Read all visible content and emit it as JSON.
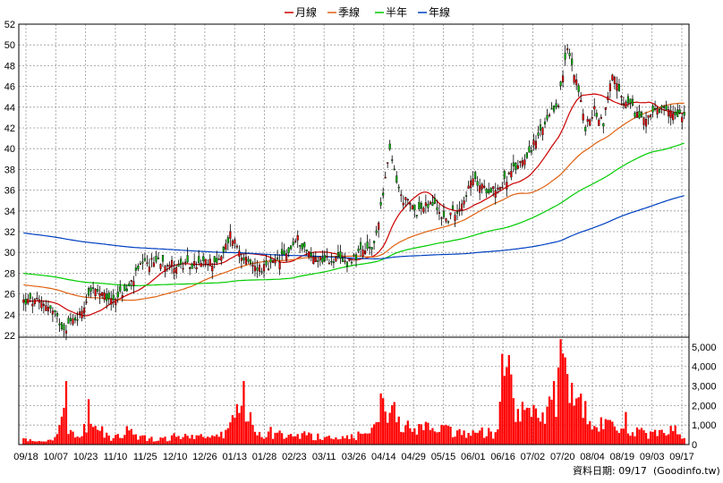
{
  "chart_data": {
    "type": "candlestick",
    "legend": [
      {
        "name": "月線",
        "color": "#cc0000"
      },
      {
        "name": "季線",
        "color": "#e06010"
      },
      {
        "name": "半年",
        "color": "#00cc00"
      },
      {
        "name": "年線",
        "color": "#0040c0"
      }
    ],
    "price_axis": {
      "ylim": [
        22,
        52
      ],
      "ticks": [
        22,
        24,
        26,
        28,
        30,
        32,
        34,
        36,
        38,
        40,
        42,
        44,
        46,
        48,
        50,
        52
      ]
    },
    "volume_axis": {
      "ylim": [
        0,
        5500
      ],
      "ticks": [
        0,
        1000,
        2000,
        3000,
        4000,
        5000
      ],
      "tick_labels": [
        "0",
        "1,000",
        "2,000",
        "3,000",
        "4,000",
        "5,000"
      ]
    },
    "x_labels": [
      "09/18",
      "10/07",
      "10/23",
      "11/10",
      "11/25",
      "12/10",
      "12/26",
      "01/13",
      "01/28",
      "02/23",
      "03/11",
      "03/26",
      "04/14",
      "04/29",
      "05/15",
      "06/01",
      "06/16",
      "07/02",
      "07/20",
      "08/04",
      "08/19",
      "09/03",
      "09/17"
    ],
    "close_anchors": [
      [
        0,
        25.3
      ],
      [
        10,
        25.1
      ],
      [
        18,
        22.7
      ],
      [
        25,
        24.0
      ],
      [
        30,
        26.5
      ],
      [
        38,
        25.4
      ],
      [
        46,
        26.3
      ],
      [
        52,
        28.6
      ],
      [
        60,
        29.3
      ],
      [
        70,
        28.6
      ],
      [
        80,
        28.9
      ],
      [
        88,
        29.3
      ],
      [
        92,
        31.8
      ],
      [
        100,
        28.8
      ],
      [
        108,
        28.4
      ],
      [
        116,
        29.6
      ],
      [
        122,
        31.3
      ],
      [
        128,
        29.6
      ],
      [
        136,
        29.3
      ],
      [
        144,
        29.1
      ],
      [
        150,
        29.9
      ],
      [
        156,
        30.5
      ],
      [
        160,
        35.9
      ],
      [
        163,
        39.6
      ],
      [
        168,
        35.3
      ],
      [
        175,
        34.0
      ],
      [
        182,
        34.7
      ],
      [
        188,
        33.1
      ],
      [
        194,
        34.4
      ],
      [
        200,
        37.0
      ],
      [
        205,
        36.1
      ],
      [
        212,
        36.3
      ],
      [
        218,
        37.9
      ],
      [
        226,
        40.0
      ],
      [
        232,
        42.2
      ],
      [
        238,
        44.5
      ],
      [
        242,
        49.6
      ],
      [
        246,
        46.8
      ],
      [
        250,
        42.0
      ],
      [
        254,
        43.7
      ],
      [
        258,
        42.5
      ],
      [
        262,
        47.4
      ],
      [
        266,
        44.7
      ],
      [
        270,
        44.0
      ],
      [
        274,
        43.0
      ],
      [
        280,
        43.4
      ],
      [
        286,
        43.6
      ],
      [
        294,
        43.4
      ]
    ],
    "vol_anchors": [
      [
        0,
        300
      ],
      [
        8,
        150
      ],
      [
        15,
        400
      ],
      [
        18,
        2300
      ],
      [
        20,
        800
      ],
      [
        24,
        450
      ],
      [
        30,
        1500
      ],
      [
        34,
        700
      ],
      [
        40,
        350
      ],
      [
        46,
        800
      ],
      [
        52,
        450
      ],
      [
        60,
        280
      ],
      [
        70,
        480
      ],
      [
        80,
        400
      ],
      [
        90,
        600
      ],
      [
        96,
        1800
      ],
      [
        100,
        900
      ],
      [
        108,
        500
      ],
      [
        116,
        650
      ],
      [
        124,
        550
      ],
      [
        132,
        450
      ],
      [
        140,
        420
      ],
      [
        150,
        500
      ],
      [
        156,
        800
      ],
      [
        160,
        2900
      ],
      [
        163,
        2200
      ],
      [
        168,
        950
      ],
      [
        176,
        1000
      ],
      [
        184,
        800
      ],
      [
        190,
        750
      ],
      [
        198,
        650
      ],
      [
        206,
        700
      ],
      [
        210,
        600
      ],
      [
        214,
        4900
      ],
      [
        218,
        2200
      ],
      [
        222,
        1200
      ],
      [
        226,
        1700
      ],
      [
        232,
        1400
      ],
      [
        236,
        2500
      ],
      [
        240,
        4700
      ],
      [
        243,
        3000
      ],
      [
        247,
        2600
      ],
      [
        250,
        1700
      ],
      [
        255,
        1200
      ],
      [
        260,
        1000
      ],
      [
        266,
        800
      ],
      [
        274,
        700
      ],
      [
        282,
        550
      ],
      [
        288,
        1000
      ],
      [
        294,
        350
      ]
    ],
    "footer": "資料日期: 09/17",
    "source": "(Goodinfo.tw)"
  }
}
